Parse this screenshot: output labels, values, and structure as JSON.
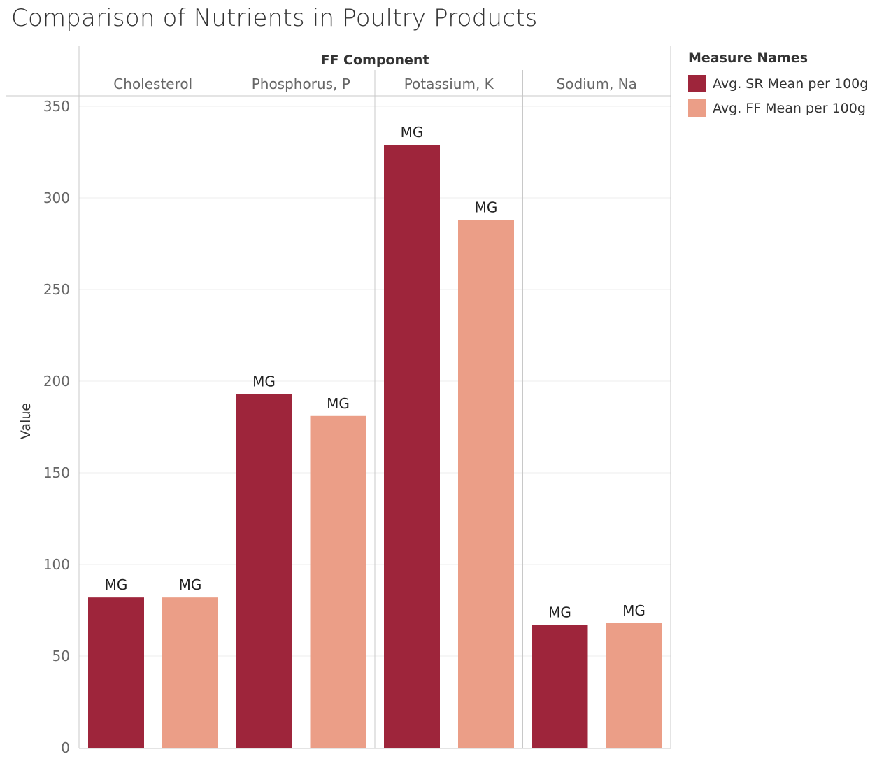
{
  "title": "Comparison of Nutrients in Poultry Products",
  "chart_data": {
    "type": "bar",
    "column_header": "FF Component",
    "ylabel": "Value",
    "ylim": [
      0,
      350
    ],
    "yticks": [
      0,
      50,
      100,
      150,
      200,
      250,
      300,
      350
    ],
    "categories": [
      "Cholesterol",
      "Phosphorus, P",
      "Potassium, K",
      "Sodium, Na"
    ],
    "series": [
      {
        "name": "Avg. SR Mean per 100g",
        "color": "#9e253b",
        "values": [
          82,
          193,
          329,
          67
        ],
        "labels": [
          "MG",
          "MG",
          "MG",
          "MG"
        ]
      },
      {
        "name": "Avg. FF Mean per 100g",
        "color": "#eb9e87",
        "values": [
          82,
          181,
          288,
          68
        ],
        "labels": [
          "MG",
          "MG",
          "MG",
          "MG"
        ]
      }
    ],
    "grid": true,
    "legend_title": "Measure Names",
    "legend_position": "right"
  }
}
